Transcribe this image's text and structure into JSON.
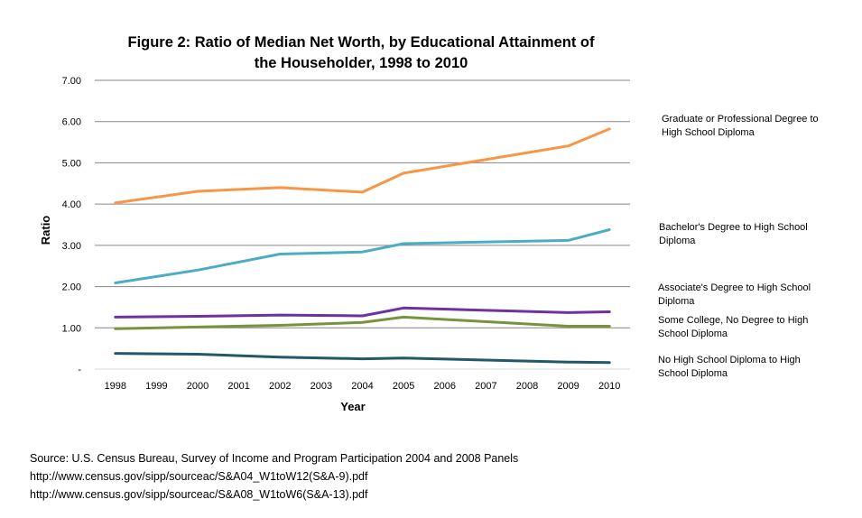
{
  "chart_data": {
    "type": "line",
    "title": "Figure 2: Ratio of Median Net Worth, by Educational Attainment of the Householder, 1998 to 2010",
    "title_lines": [
      "Figure 2: Ratio of Median Net Worth, by Educational Attainment of",
      "the Householder, 1998 to 2010"
    ],
    "xlabel": "Year",
    "ylabel": "Ratio",
    "x": [
      1998,
      1999,
      2000,
      2001,
      2002,
      2003,
      2004,
      2005,
      2006,
      2007,
      2008,
      2009,
      2010
    ],
    "x_ticks": [
      "1998",
      "1999",
      "2000",
      "2001",
      "2002",
      "2003",
      "2004",
      "2005",
      "2006",
      "2007",
      "2008",
      "2009",
      "2010"
    ],
    "y_ticks": [
      "-",
      "1.00",
      "2.00",
      "3.00",
      "4.00",
      "5.00",
      "6.00",
      "7.00"
    ],
    "ylim": [
      0,
      7
    ],
    "grid": true,
    "legend_position": "right",
    "series": [
      {
        "name": "Graduate or Professional Degree to High School Diploma",
        "label_lines": [
          "Graduate or Professional Degree to",
          "High School Diploma"
        ],
        "color": "#F79646",
        "points": [
          [
            1998,
            4.03
          ],
          [
            2000,
            4.31
          ],
          [
            2002,
            4.4
          ],
          [
            2004,
            4.29
          ],
          [
            2005,
            4.75
          ],
          [
            2009,
            5.41
          ],
          [
            2010,
            5.82
          ]
        ]
      },
      {
        "name": "Bachelor's Degree to High School Diploma",
        "label_lines": [
          "Bachelor's Degree to High School",
          "Diploma"
        ],
        "color": "#4BACC6",
        "points": [
          [
            1998,
            2.09
          ],
          [
            2000,
            2.4
          ],
          [
            2002,
            2.79
          ],
          [
            2004,
            2.84
          ],
          [
            2005,
            3.04
          ],
          [
            2009,
            3.12
          ],
          [
            2010,
            3.38
          ]
        ]
      },
      {
        "name": "Associate's Degree to High School Diploma",
        "label_lines": [
          "Associate's Degree to High School",
          "Diploma"
        ],
        "color": "#7030A0",
        "points": [
          [
            1998,
            1.26
          ],
          [
            2000,
            1.28
          ],
          [
            2002,
            1.31
          ],
          [
            2004,
            1.29
          ],
          [
            2005,
            1.48
          ],
          [
            2009,
            1.37
          ],
          [
            2010,
            1.39
          ]
        ]
      },
      {
        "name": "Some College, No Degree to High School Diploma",
        "label_lines": [
          "Some College, No Degree to High",
          "School Diploma"
        ],
        "color": "#77933C",
        "points": [
          [
            1998,
            0.98
          ],
          [
            2000,
            1.02
          ],
          [
            2002,
            1.06
          ],
          [
            2004,
            1.13
          ],
          [
            2005,
            1.26
          ],
          [
            2009,
            1.04
          ],
          [
            2010,
            1.04
          ]
        ]
      },
      {
        "name": "No High School Diploma to High School Diploma",
        "label_lines": [
          "No High School Diploma to High",
          "School Diploma"
        ],
        "color": "#215968",
        "points": [
          [
            1998,
            0.38
          ],
          [
            2000,
            0.36
          ],
          [
            2002,
            0.29
          ],
          [
            2004,
            0.25
          ],
          [
            2005,
            0.27
          ],
          [
            2009,
            0.17
          ],
          [
            2010,
            0.16
          ]
        ]
      }
    ]
  },
  "source": {
    "lines": [
      "Source: U.S. Census Bureau, Survey of Income and Program Participation 2004  and 2008  Panels",
      "http://www.census.gov/sipp/sourceac/S&A04_W1toW12(S&A-9).pdf",
      "http://www.census.gov/sipp/sourceac/S&A08_W1toW6(S&A-13).pdf"
    ]
  }
}
